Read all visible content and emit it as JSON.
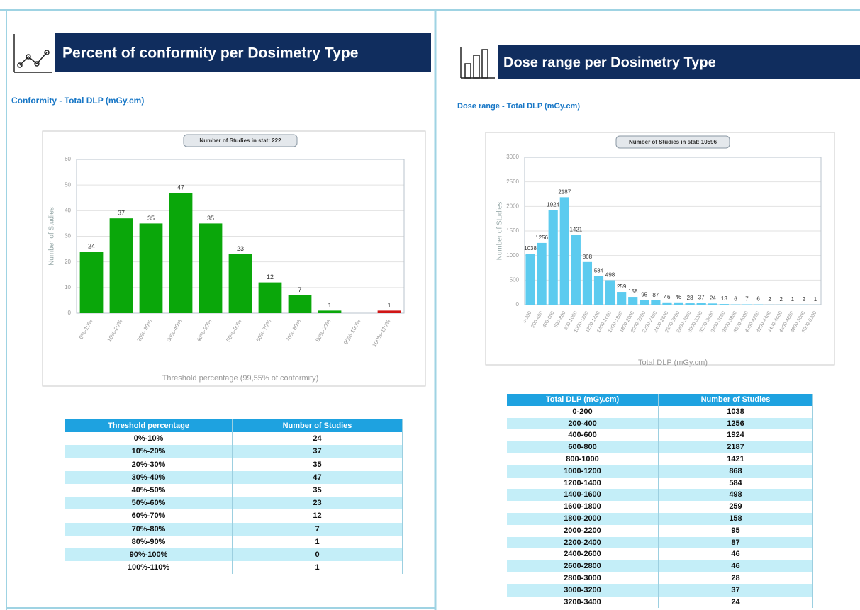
{
  "panels": [
    {
      "title": "Percent of conformity per Dosimetry Type",
      "subtitle": "Conformity - Total DLP (mGy.cm)",
      "table": {
        "header": [
          "Threshold percentage",
          "Number of Studies"
        ],
        "rows": [
          [
            "0%-10%",
            24
          ],
          [
            "10%-20%",
            37
          ],
          [
            "20%-30%",
            35
          ],
          [
            "30%-40%",
            47
          ],
          [
            "40%-50%",
            35
          ],
          [
            "50%-60%",
            23
          ],
          [
            "60%-70%",
            12
          ],
          [
            "70%-80%",
            7
          ],
          [
            "80%-90%",
            1
          ],
          [
            "90%-100%",
            0
          ],
          [
            "100%-110%",
            1
          ]
        ]
      }
    },
    {
      "title": "Dose range per Dosimetry Type",
      "subtitle": "Dose range - Total DLP (mGy.cm)",
      "table": {
        "header": [
          "Total DLP (mGy.cm)",
          "Number of Studies"
        ],
        "rows": [
          [
            "0-200",
            1038
          ],
          [
            "200-400",
            1256
          ],
          [
            "400-600",
            1924
          ],
          [
            "600-800",
            2187
          ],
          [
            "800-1000",
            1421
          ],
          [
            "1000-1200",
            868
          ],
          [
            "1200-1400",
            584
          ],
          [
            "1400-1600",
            498
          ],
          [
            "1600-1800",
            259
          ],
          [
            "1800-2000",
            158
          ],
          [
            "2000-2200",
            95
          ],
          [
            "2200-2400",
            87
          ],
          [
            "2400-2600",
            46
          ],
          [
            "2600-2800",
            46
          ],
          [
            "2800-3000",
            28
          ],
          [
            "3000-3200",
            37
          ],
          [
            "3200-3400",
            24
          ]
        ]
      }
    }
  ],
  "chart_data": [
    {
      "type": "bar",
      "title": "Number of Studies in stat: 222",
      "ylabel": "Number of Studies",
      "xlabel": "Threshold percentage (99,55% of conformity)",
      "categories": [
        "0%-10%",
        "10%-20%",
        "20%-30%",
        "30%-40%",
        "40%-50%",
        "50%-60%",
        "60%-70%",
        "70%-80%",
        "80%-90%",
        "90%-100%",
        "100%-110%"
      ],
      "values": [
        24,
        37,
        35,
        47,
        35,
        23,
        12,
        7,
        1,
        0,
        1
      ],
      "colors": [
        "#0aa70a",
        "#0aa70a",
        "#0aa70a",
        "#0aa70a",
        "#0aa70a",
        "#0aa70a",
        "#0aa70a",
        "#0aa70a",
        "#0aa70a",
        "#0aa70a",
        "#d01515"
      ],
      "ylim": [
        0,
        60
      ],
      "yticks": [
        0,
        10,
        20,
        30,
        40,
        50,
        60
      ],
      "grid": true
    },
    {
      "type": "bar",
      "title": "Number of Studies in stat: 10596",
      "ylabel": "Number of Studies",
      "xlabel": "Total DLP (mGy.cm)",
      "categories": [
        "0-200",
        "200-400",
        "400-600",
        "600-800",
        "800-1000",
        "1000-1200",
        "1200-1400",
        "1400-1600",
        "1600-1800",
        "1800-2000",
        "2000-2200",
        "2200-2400",
        "2400-2600",
        "2600-2800",
        "2800-3000",
        "3000-3200",
        "3200-3400",
        "3400-3600",
        "3600-3800",
        "3800-4000",
        "4000-4200",
        "4200-4400",
        "4400-4600",
        "4600-4800",
        "4800-5000",
        "5000-5200"
      ],
      "values": [
        1038,
        1256,
        1924,
        2187,
        1421,
        868,
        584,
        498,
        259,
        158,
        95,
        87,
        46,
        46,
        28,
        37,
        24,
        13,
        6,
        7,
        6,
        2,
        2,
        1,
        2,
        1
      ],
      "colors": [
        "#5ccbef",
        "#5ccbef",
        "#5ccbef",
        "#5ccbef",
        "#5ccbef",
        "#5ccbef",
        "#5ccbef",
        "#5ccbef",
        "#5ccbef",
        "#5ccbef",
        "#5ccbef",
        "#5ccbef",
        "#5ccbef",
        "#5ccbef",
        "#5ccbef",
        "#5ccbef",
        "#5ccbef",
        "#5ccbef",
        "#5ccbef",
        "#5ccbef",
        "#5ccbef",
        "#5ccbef",
        "#5ccbef",
        "#5ccbef",
        "#5ccbef",
        "#5ccbef"
      ],
      "ylim": [
        0,
        3000
      ],
      "yticks": [
        0,
        500,
        1000,
        1500,
        2000,
        2500,
        3000
      ],
      "grid": true
    }
  ]
}
